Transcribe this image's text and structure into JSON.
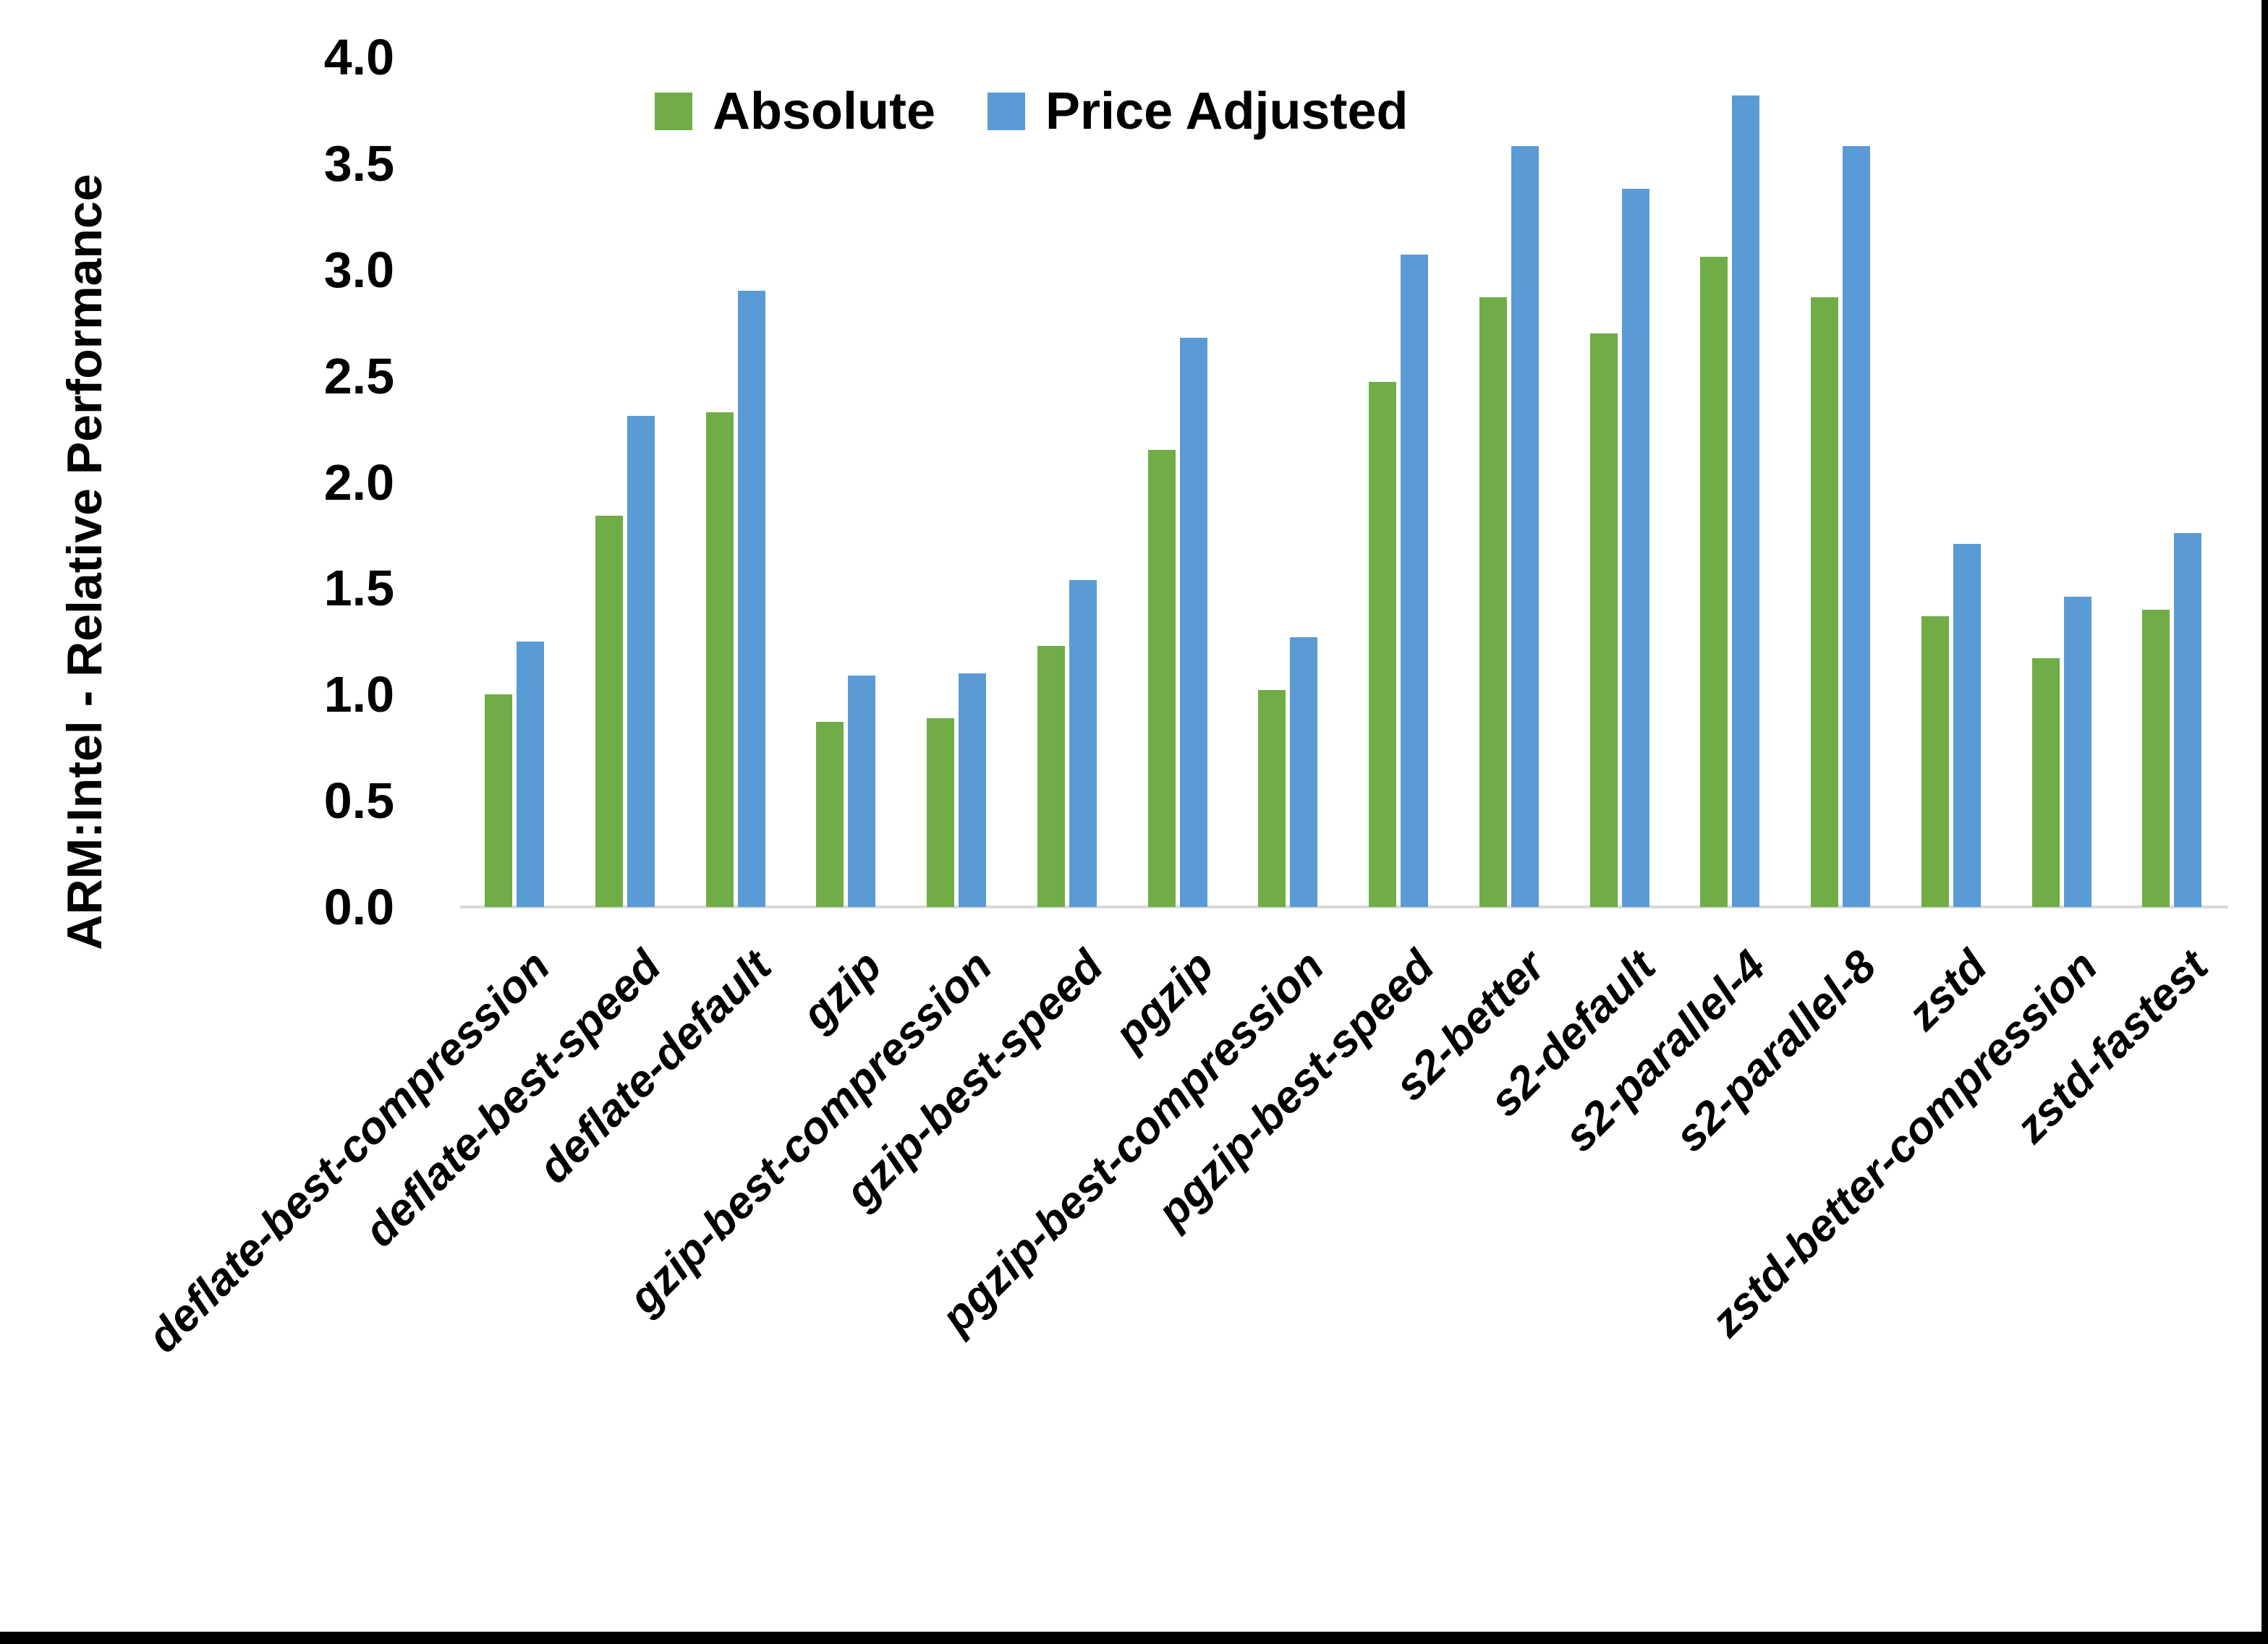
{
  "chart_data": {
    "type": "bar",
    "title": "",
    "xlabel": "",
    "ylabel": "ARM:Intel - Relative Performance",
    "ylim": [
      0.0,
      4.0
    ],
    "ytick_step": 0.5,
    "yticks": [
      "4.0",
      "3.5",
      "3.0",
      "2.5",
      "2.0",
      "1.5",
      "1.0",
      "0.5",
      "0.0"
    ],
    "grid": false,
    "legend_position": "top-center",
    "categories": [
      "deflate-best-compression",
      "deflate-best-speed",
      "deflate-default",
      "gzip",
      "gzip-best-compression",
      "gzip-best-speed",
      "pgzip",
      "pgzip-best-compression",
      "pgzip-best-speed",
      "s2-better",
      "s2-default",
      "s2-parallel-4",
      "s2-parallel-8",
      "zstd",
      "zstd-better-compression",
      "zstd-fastest"
    ],
    "series": [
      {
        "name": "Absolute",
        "color": "#70AD47",
        "values": [
          1.0,
          1.84,
          2.33,
          0.87,
          0.89,
          1.23,
          2.15,
          1.02,
          2.47,
          2.87,
          2.7,
          3.06,
          2.87,
          1.37,
          1.17,
          1.4
        ]
      },
      {
        "name": "Price Adjusted",
        "color": "#5B9BD5",
        "values": [
          1.25,
          2.31,
          2.9,
          1.09,
          1.1,
          1.54,
          2.68,
          1.27,
          3.07,
          3.58,
          3.38,
          3.82,
          3.58,
          1.71,
          1.46,
          1.76
        ]
      }
    ],
    "axis_line_color": "#d9d9d9",
    "text_color": "#000000"
  }
}
